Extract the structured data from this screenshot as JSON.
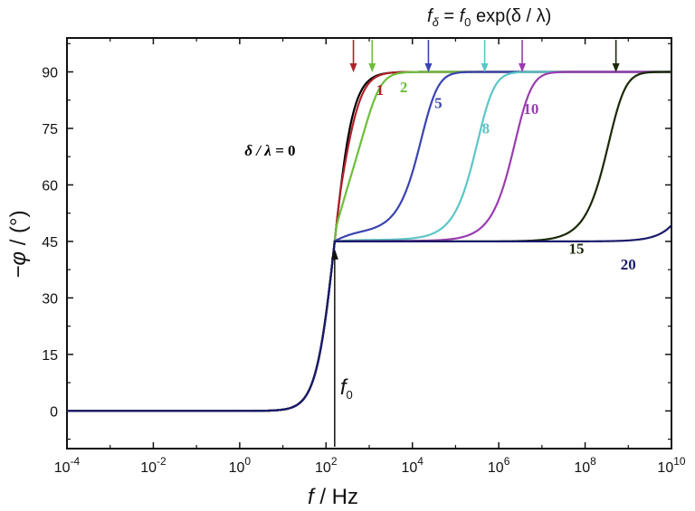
{
  "chart_data": {
    "type": "line",
    "xlabel_italic": "f",
    "xlabel_unit": " / Hz",
    "ylabel_symbol": "−φ",
    "ylabel_unit": " / (°)",
    "xscale": "log",
    "xlim": [
      -4,
      10
    ],
    "ylim": [
      -10,
      99
    ],
    "x_ticks": [
      {
        "exp": -4,
        "base": "10",
        "sup": "-4"
      },
      {
        "exp": -2,
        "base": "10",
        "sup": "-2"
      },
      {
        "exp": 0,
        "base": "10",
        "sup": "0"
      },
      {
        "exp": 2,
        "base": "10",
        "sup": "2"
      },
      {
        "exp": 4,
        "base": "10",
        "sup": "4"
      },
      {
        "exp": 6,
        "base": "10",
        "sup": "6"
      },
      {
        "exp": 8,
        "base": "10",
        "sup": "8"
      },
      {
        "exp": 10,
        "base": "10",
        "sup": "10"
      }
    ],
    "y_ticks": [
      0,
      15,
      30,
      45,
      60,
      75,
      90
    ],
    "f0_exp": 2.2,
    "f0_label": "f",
    "f0_sub": "0",
    "formula": {
      "lhs": "f",
      "lhs_sub": "δ",
      "eq": " = ",
      "rhs": "f",
      "rhs_sub": "0",
      "tail": " exp(δ / λ)"
    },
    "delta_label_prefix": "δ / λ = ",
    "series": [
      {
        "name": "0",
        "delta": 0,
        "color": "#000000"
      },
      {
        "name": "1",
        "delta": 1,
        "color": "#b0202a"
      },
      {
        "name": "2",
        "delta": 2,
        "color": "#6cbf3a"
      },
      {
        "name": "5",
        "delta": 5,
        "color": "#3a44b0"
      },
      {
        "name": "8",
        "delta": 8,
        "color": "#5cc6c8"
      },
      {
        "name": "10",
        "delta": 10,
        "color": "#9a3db0"
      },
      {
        "name": "15",
        "delta": 15,
        "color": "#1a2a08"
      },
      {
        "name": "20",
        "delta": 20,
        "color": "#1a1a6a"
      }
    ],
    "arrow_colors": [
      "#b0202a",
      "#6cbf3a",
      "#3a44b0",
      "#5cc6c8",
      "#9a3db0",
      "#1a2a08"
    ],
    "arrow_deltas": [
      1,
      2,
      5,
      8,
      10,
      15
    ],
    "grid": false
  }
}
